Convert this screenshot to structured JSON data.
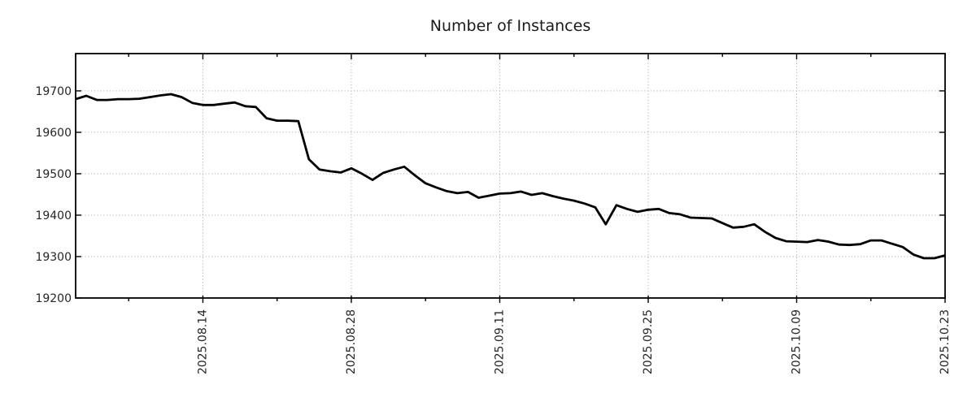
{
  "chart_data": {
    "type": "line",
    "title": "Number of Instances",
    "xlabel": "",
    "ylabel": "",
    "legend": "none",
    "grid": true,
    "line_color": "#000000",
    "grid_color": "#b0b0b0",
    "text_color": "#262626",
    "ylim": [
      19200,
      19790
    ],
    "y_ticks": [
      19200,
      19300,
      19400,
      19500,
      19600,
      19700
    ],
    "x_tick_labels": [
      "2025.08.14",
      "2025.08.28",
      "2025.09.11",
      "2025.09.25",
      "2025.10.09",
      "2025.10.23"
    ],
    "x_tick_indices": [
      12,
      26,
      40,
      54,
      68,
      82
    ],
    "x_minor_tick_indices": [
      5,
      19,
      33,
      47,
      61,
      75
    ],
    "values": [
      19680,
      19688,
      19678,
      19678,
      19680,
      19680,
      19681,
      19685,
      19689,
      19692,
      19685,
      19671,
      19666,
      19666,
      19669,
      19672,
      19663,
      19661,
      19634,
      19628,
      19628,
      19627,
      19535,
      19510,
      19506,
      19503,
      19513,
      19500,
      19485,
      19502,
      19510,
      19517,
      19496,
      19477,
      19467,
      19458,
      19453,
      19456,
      19442,
      19447,
      19452,
      19453,
      19457,
      19449,
      19453,
      19446,
      19440,
      19435,
      19428,
      19419,
      19378,
      19424,
      19415,
      19408,
      19413,
      19415,
      19405,
      19402,
      19394,
      19393,
      19392,
      19381,
      19370,
      19372,
      19378,
      19360,
      19345,
      19337,
      19336,
      19335,
      19340,
      19336,
      19329,
      19328,
      19330,
      19339,
      19339,
      19331,
      19323,
      19305,
      19296,
      19296,
      19303
    ]
  }
}
